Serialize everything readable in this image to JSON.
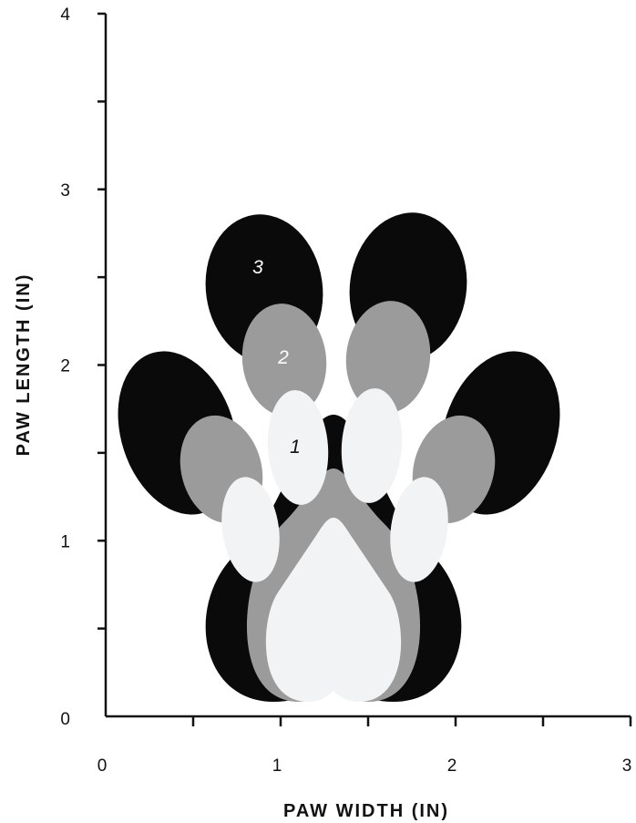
{
  "chart_data": {
    "type": "diagram",
    "xlabel": "PAW WIDTH (IN)",
    "ylabel": "PAW LENGTH (IN)",
    "xlim": [
      0,
      3
    ],
    "ylim": [
      0,
      4
    ],
    "x_tick_labels": [
      "0",
      "1",
      "2",
      "3"
    ],
    "y_tick_labels": [
      "0",
      "1",
      "2",
      "3",
      "4"
    ],
    "minor_tick_step": 0.5,
    "size_labels": [
      "1",
      "2",
      "3"
    ],
    "size_colors": {
      "1": "#f2f3f5",
      "2": "#9b9b9b",
      "3": "#0a0a0a"
    },
    "size_label_colors": {
      "1": "#111111",
      "2": "#ffffff",
      "3": "#ffffff"
    }
  }
}
